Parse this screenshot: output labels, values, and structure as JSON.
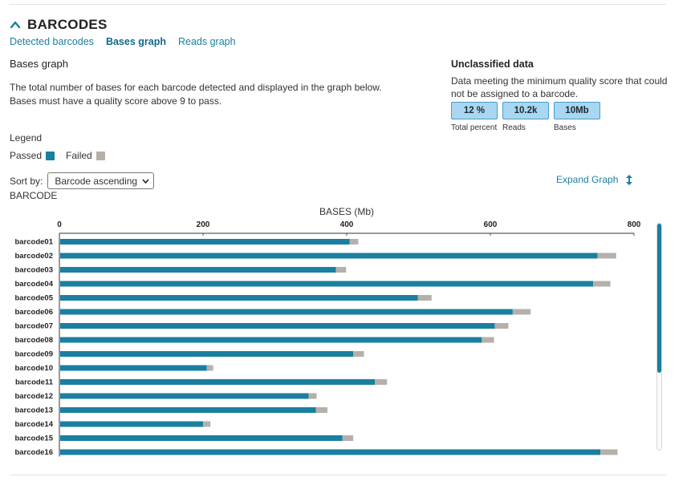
{
  "section": {
    "title": "BARCODES"
  },
  "tabs": [
    {
      "label": "Detected barcodes"
    },
    {
      "label": "Bases graph"
    },
    {
      "label": "Reads graph"
    }
  ],
  "bases": {
    "title": "Bases graph",
    "description": "The total number of bases for each barcode detected and displayed in the graph below. Bases must have a quality score above 9 to pass."
  },
  "legend": {
    "title": "Legend",
    "passed": "Passed",
    "failed": "Failed"
  },
  "sort": {
    "label": "Sort by:",
    "value": "Barcode ascending"
  },
  "expand_label": "Expand Graph",
  "unclassified": {
    "title": "Unclassified data",
    "description": "Data meeting the minimum quality score that could not be assigned to a barcode.",
    "stats": [
      {
        "value": "12 %",
        "label": "Total percent"
      },
      {
        "value": "10.2k",
        "label": "Reads"
      },
      {
        "value": "10Mb",
        "label": "Bases"
      }
    ]
  },
  "colors": {
    "passed": "#1a7fa0",
    "failed": "#b5b0a9",
    "accent": "#1a7fa0"
  },
  "chart_data": {
    "type": "bar",
    "orientation": "horizontal",
    "stacked": true,
    "title": "",
    "xlabel": "BASES (Mb)",
    "ylabel": "BARCODE",
    "xlim": [
      0,
      800
    ],
    "xticks": [
      0,
      200,
      400,
      600,
      800
    ],
    "categories": [
      "barcode01",
      "barcode02",
      "barcode03",
      "barcode04",
      "barcode05",
      "barcode06",
      "barcode07",
      "barcode08",
      "barcode09",
      "barcode10",
      "barcode11",
      "barcode12",
      "barcode13",
      "barcode14",
      "barcode15",
      "barcode16"
    ],
    "series": [
      {
        "name": "Passed",
        "values": [
          403,
          748,
          384,
          742,
          498,
          630,
          605,
          587,
          408,
          204,
          438,
          346,
          356,
          199,
          393,
          752
        ]
      },
      {
        "name": "Failed",
        "values": [
          12,
          26,
          14,
          24,
          19,
          25,
          19,
          17,
          15,
          9,
          17,
          11,
          16,
          10,
          15,
          24
        ]
      }
    ]
  }
}
